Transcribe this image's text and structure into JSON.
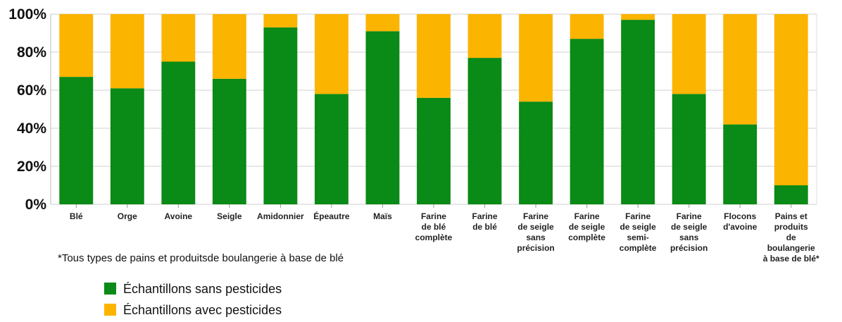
{
  "chart_data": {
    "type": "stacked_bar",
    "categories": [
      "Blé",
      "Orge",
      "Avoine",
      "Seigle",
      "Amidonnier",
      "Épeautre",
      "Maïs",
      "Farine\nde blé\ncomplète",
      "Farine\nde blé",
      "Farine\nde seigle\nsans précision",
      "Farine\nde seigle\ncomplète",
      "Farine\nde seigle\nsemi-complète",
      "Farine\nde seigle\nsans précision",
      "Flocons\nd'avoine",
      "Pains et produits\nde boulangerie\nà base de blé*"
    ],
    "series": [
      {
        "name": "Échantillons sans pesticides",
        "color": "#0a8a16",
        "values": [
          67,
          61,
          75,
          66,
          93,
          58,
          91,
          56,
          77,
          54,
          87,
          97,
          58,
          42,
          10
        ]
      },
      {
        "name": "Échantillons avec pesticides",
        "color": "#fbb400",
        "values": [
          33,
          39,
          25,
          34,
          7,
          42,
          9,
          44,
          23,
          46,
          13,
          3,
          42,
          58,
          90
        ]
      }
    ],
    "ylim": [
      0,
      100
    ],
    "yticks": [
      {
        "value": 0,
        "label": "0%"
      },
      {
        "value": 20,
        "label": "20%"
      },
      {
        "value": 40,
        "label": "40%"
      },
      {
        "value": 60,
        "label": "60%"
      },
      {
        "value": 80,
        "label": "80%"
      },
      {
        "value": 100,
        "label": "100%"
      }
    ],
    "grid": true,
    "annotation": "*Tous types de pains et produitsde boulangerie à base de blé"
  }
}
